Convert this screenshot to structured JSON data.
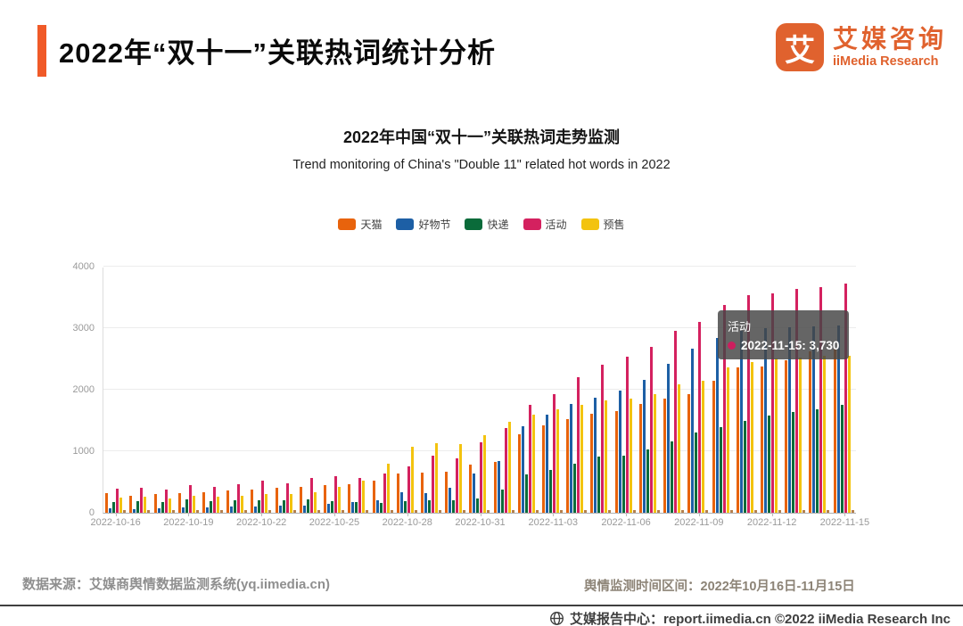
{
  "header": {
    "title": "2022年“双十一”关联热词统计分析",
    "logo": {
      "mark": "艾",
      "name_cn": "艾媒咨询",
      "name_en": "iiMedia Research"
    }
  },
  "chart_data": {
    "type": "bar",
    "title": "2022年中国“双十一”关联热词走势监测",
    "subtitle": "Trend monitoring of China's \"Double 11\" related hot words in 2022",
    "ylim": [
      0,
      4000
    ],
    "yticks": [
      0,
      1000,
      2000,
      3000,
      4000
    ],
    "grid": true,
    "legend_position": "top",
    "categories": [
      "2022-10-16",
      "2022-10-17",
      "2022-10-18",
      "2022-10-19",
      "2022-10-20",
      "2022-10-21",
      "2022-10-22",
      "2022-10-23",
      "2022-10-24",
      "2022-10-25",
      "2022-10-26",
      "2022-10-27",
      "2022-10-28",
      "2022-10-29",
      "2022-10-30",
      "2022-10-31",
      "2022-11-01",
      "2022-11-02",
      "2022-11-03",
      "2022-11-04",
      "2022-11-05",
      "2022-11-06",
      "2022-11-07",
      "2022-11-08",
      "2022-11-09",
      "2022-11-10",
      "2022-11-11",
      "2022-11-12",
      "2022-11-13",
      "2022-11-14",
      "2022-11-15"
    ],
    "x_tick_labels": [
      "2022-10-16",
      "2022-10-19",
      "2022-10-22",
      "2022-10-25",
      "2022-10-28",
      "2022-10-31",
      "2022-11-03",
      "2022-11-06",
      "2022-11-09",
      "2022-11-12",
      "2022-11-15"
    ],
    "series": [
      {
        "name": "天猫",
        "color": "#e8630c",
        "values": [
          320,
          280,
          300,
          320,
          340,
          360,
          380,
          400,
          420,
          450,
          470,
          520,
          640,
          650,
          660,
          780,
          820,
          1270,
          1420,
          1520,
          1610,
          1650,
          1770,
          1860,
          1930,
          2140,
          2360,
          2380,
          2480,
          2620,
          2670
        ]
      },
      {
        "name": "好物节",
        "color": "#1d5fa5",
        "values": [
          70,
          60,
          75,
          90,
          85,
          95,
          100,
          110,
          120,
          140,
          170,
          200,
          330,
          320,
          400,
          640,
          840,
          1400,
          1590,
          1770,
          1870,
          1980,
          2160,
          2420,
          2670,
          2840,
          2960,
          3000,
          3010,
          3030,
          3050
        ]
      },
      {
        "name": "快递",
        "color": "#0a6b3a",
        "values": [
          170,
          185,
          175,
          215,
          190,
          205,
          210,
          200,
          215,
          190,
          175,
          160,
          195,
          200,
          205,
          230,
          370,
          620,
          700,
          790,
          910,
          930,
          1030,
          1160,
          1300,
          1390,
          1490,
          1580,
          1640,
          1680,
          1750
        ]
      },
      {
        "name": "活动",
        "color": "#d4215f",
        "values": [
          390,
          405,
          380,
          450,
          420,
          470,
          520,
          480,
          560,
          590,
          570,
          640,
          755,
          930,
          885,
          1150,
          1380,
          1750,
          1930,
          2200,
          2410,
          2540,
          2700,
          2950,
          3100,
          3370,
          3540,
          3565,
          3640,
          3665,
          3730
        ]
      },
      {
        "name": "预售",
        "color": "#f3c30f",
        "values": [
          240,
          255,
          230,
          275,
          260,
          280,
          300,
          310,
          330,
          420,
          520,
          800,
          1075,
          1125,
          1120,
          1260,
          1480,
          1600,
          1680,
          1750,
          1830,
          1860,
          1930,
          2080,
          2150,
          2360,
          2450,
          2500,
          2520,
          2550,
          2550
        ]
      },
      {
        "name": "",
        "color": "#b5804d",
        "values": [
          45,
          45,
          45,
          45,
          45,
          45,
          45,
          45,
          45,
          45,
          45,
          45,
          45,
          45,
          45,
          45,
          45,
          45,
          45,
          45,
          45,
          45,
          45,
          45,
          45,
          45,
          45,
          45,
          45,
          45,
          45
        ]
      }
    ]
  },
  "tooltip": {
    "series": "活动",
    "value_line": "2022-11-15: 3,730",
    "dot_color": "#cc1e5e"
  },
  "footer": {
    "source": "数据来源：艾媒商舆情数据监测系统(yq.iimedia.cn)",
    "period": "舆情监测时间区间：2022年10月16日-11月15日"
  },
  "bottombar": {
    "text": "艾媒报告中心：report.iimedia.cn  ©2022  iiMedia Research Inc"
  }
}
